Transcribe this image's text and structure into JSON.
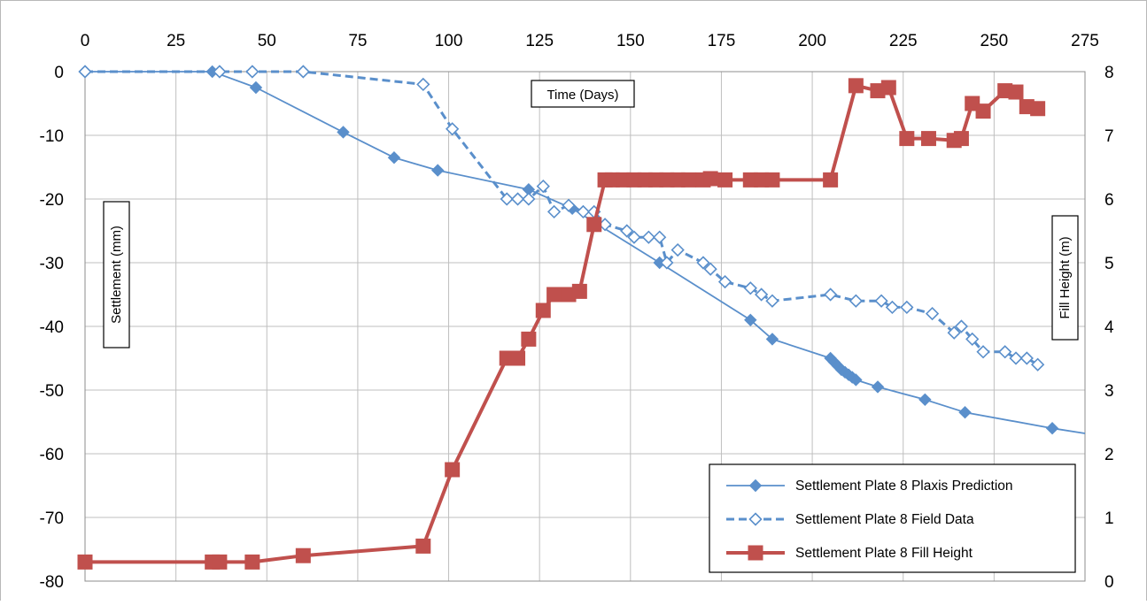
{
  "chart_data": {
    "type": "line",
    "title": "",
    "xlabel": "Time (Days)",
    "ylabel": "Settlement (mm)",
    "y2label": "Fill Height (m)",
    "xlim": [
      0,
      275
    ],
    "ylim": [
      -80,
      0
    ],
    "y2lim": [
      0,
      8
    ],
    "x_ticks": [
      0,
      25,
      50,
      75,
      100,
      125,
      150,
      175,
      200,
      225,
      250,
      275
    ],
    "y_ticks": [
      0,
      -10,
      -20,
      -30,
      -40,
      -50,
      -60,
      -70,
      -80
    ],
    "y2_ticks": [
      8,
      7,
      6,
      5,
      4,
      3,
      2,
      1,
      0
    ],
    "x_axis_position": "top",
    "grid": true,
    "legend_position": "bottom-right",
    "colors": {
      "blue": "#5a8fcb",
      "red": "#c0504d",
      "grid": "#bfbfbf"
    },
    "series": [
      {
        "name": "Settlement Plate 8 Plaxis Prediction",
        "axis": "left",
        "style": "solid",
        "marker": "diamond-filled",
        "x": [
          0,
          35,
          47,
          71,
          85,
          97,
          122,
          134,
          158,
          183,
          189,
          205,
          206,
          207,
          208,
          209,
          210,
          211,
          212,
          218,
          231,
          242,
          266
        ],
        "y": [
          0,
          0,
          -2.5,
          -9.5,
          -13.5,
          -15.5,
          -18.5,
          -21.5,
          -30,
          -39,
          -42,
          -45,
          -45.6,
          -46.2,
          -46.8,
          -47.2,
          -47.6,
          -48,
          -48.4,
          -49.5,
          -51.5,
          -53.5,
          -56
        ],
        "tail_to": [
          275,
          -56.8
        ]
      },
      {
        "name": "Settlement Plate 8 Field Data",
        "axis": "left",
        "style": "dashed",
        "marker": "diamond-open",
        "x": [
          0,
          37,
          46,
          60,
          93,
          101,
          116,
          119,
          122,
          126,
          129,
          133,
          137,
          140,
          143,
          149,
          151,
          155,
          158,
          160,
          163,
          170,
          172,
          176,
          183,
          186,
          189,
          205,
          212,
          219,
          222,
          226,
          233,
          239,
          241,
          244,
          247,
          253,
          256,
          259,
          262
        ],
        "y": [
          0,
          0,
          0,
          0,
          -2,
          -9,
          -20,
          -20,
          -20,
          -18,
          -22,
          -21,
          -22,
          -22,
          -24,
          -25,
          -26,
          -26,
          -26,
          -30,
          -28,
          -30,
          -31,
          -33,
          -34,
          -35,
          -36,
          -35,
          -36,
          -36,
          -37,
          -37,
          -38,
          -41,
          -40,
          -42,
          -44,
          -44,
          -45,
          -45,
          -46
        ]
      },
      {
        "name": "Settlement Plate 8 Fill Height",
        "axis": "right",
        "style": "solid",
        "marker": "square-filled",
        "x": [
          0,
          35,
          37,
          46,
          60,
          93,
          101,
          116,
          119,
          122,
          126,
          129,
          133,
          136,
          140,
          143,
          145,
          148,
          151,
          154,
          157,
          160,
          163,
          166,
          170,
          172,
          176,
          183,
          186,
          189,
          205,
          212,
          218,
          221,
          226,
          232,
          239,
          241,
          244,
          247,
          253,
          256,
          259,
          262
        ],
        "y": [
          0.3,
          0.3,
          0.3,
          0.3,
          0.4,
          0.55,
          1.75,
          3.5,
          3.5,
          3.8,
          4.25,
          4.5,
          4.5,
          4.55,
          5.6,
          6.3,
          6.3,
          6.3,
          6.3,
          6.3,
          6.3,
          6.3,
          6.3,
          6.3,
          6.3,
          6.32,
          6.3,
          6.3,
          6.3,
          6.3,
          6.3,
          7.78,
          7.7,
          7.75,
          6.95,
          6.95,
          6.92,
          6.95,
          7.5,
          7.38,
          7.7,
          7.68,
          7.45,
          7.42
        ]
      }
    ]
  }
}
